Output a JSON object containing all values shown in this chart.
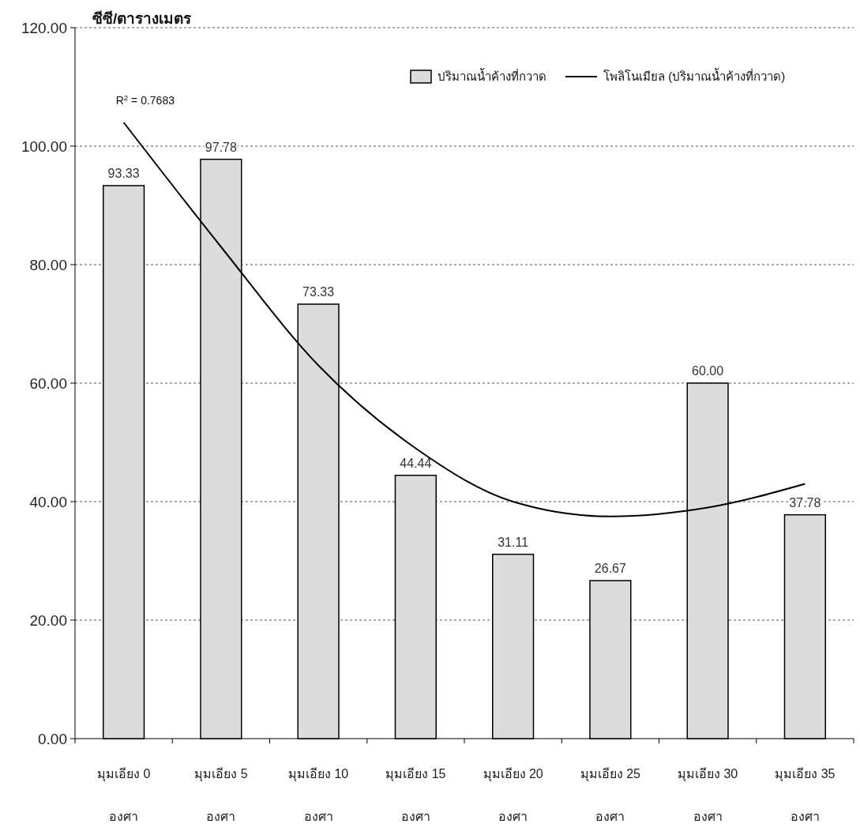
{
  "chart_data": {
    "type": "bar",
    "ylabel": "ซีซี/ตารางเมตร",
    "categories": [
      "มุมเอียง 0 องศา",
      "มุมเอียง 5 องศา",
      "มุมเอียง 10 องศา",
      "มุมเอียง 15 องศา",
      "มุมเอียง 20 องศา",
      "มุมเอียง 25 องศา",
      "มุมเอียง 30 องศา",
      "มุมเอียง 35 องศา"
    ],
    "series": [
      {
        "name": "ปริมาณน้ำค้างที่กวาด",
        "color": "#dcdcdc",
        "values": [
          93.33,
          97.78,
          73.33,
          44.44,
          31.11,
          26.67,
          60.0,
          37.78
        ],
        "value_labels": [
          "93.33",
          "97.78",
          "73.33",
          "44.44",
          "31.11",
          "26.67",
          "60.00",
          "37.78"
        ]
      },
      {
        "name": "โพลิโนเมียล (ปริมาณน้ำค้างที่กวาด)",
        "type": "line",
        "color": "#000000",
        "values": [
          104,
          83,
          63,
          49,
          40,
          37.5,
          39,
          43
        ]
      }
    ],
    "ylim": [
      0,
      120
    ],
    "yticks": [
      {
        "value": 0,
        "label": "0.00"
      },
      {
        "value": 20,
        "label": "20.00"
      },
      {
        "value": 40,
        "label": "40.00"
      },
      {
        "value": 60,
        "label": "60.00"
      },
      {
        "value": 80,
        "label": "80.00"
      },
      {
        "value": 100,
        "label": "100.00"
      },
      {
        "value": 120,
        "label": "120.00"
      }
    ],
    "grid": "y",
    "legend": "top right",
    "annotations": [
      "R$^{2}$ = 0.7683"
    ]
  }
}
